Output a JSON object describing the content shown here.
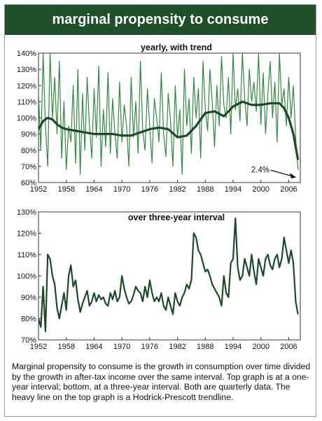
{
  "header": {
    "title": "marginal propensity to consume"
  },
  "caption": "Marginal propensity to consume is the growth in consumption over time divided by the growth in after-tax income over the same interval. Top graph is at a one-year interval; bottom, at a three-year interval. Both are quarterly data. The heavy line on the top graph is a Hodrick-Prescott trendline.",
  "colors": {
    "header_bg": "#1f4f2b",
    "series_light": "#2f8a3f",
    "series_dark": "#1c4a28",
    "frame": "#9a9a9a"
  },
  "chart_data": [
    {
      "type": "line",
      "title": "yearly, with trend",
      "xlim": [
        1952,
        2008.5
      ],
      "ylim": [
        60,
        140
      ],
      "xticks": [
        1952,
        1958,
        1964,
        1970,
        1976,
        1982,
        1988,
        1994,
        2000,
        2006
      ],
      "yticks": [
        60,
        70,
        80,
        90,
        100,
        110,
        120,
        130,
        140
      ],
      "ytick_labels": [
        "60%",
        "70%",
        "80%",
        "90%",
        "100%",
        "110%",
        "120%",
        "130%",
        "140%"
      ],
      "grid": false,
      "annotations": [
        {
          "text": "2.4%",
          "x": 2007.9,
          "y": 62,
          "arrow": true
        }
      ],
      "series": [
        {
          "style": "thin",
          "x": [
            1952.0,
            1952.5,
            1953.0,
            1953.5,
            1954.0,
            1954.5,
            1955.0,
            1955.5,
            1956.0,
            1956.5,
            1957.0,
            1957.5,
            1958.0,
            1958.5,
            1959.0,
            1959.5,
            1960.0,
            1960.5,
            1961.0,
            1961.5,
            1962.0,
            1962.5,
            1963.0,
            1963.5,
            1964.0,
            1964.5,
            1965.0,
            1965.5,
            1966.0,
            1966.5,
            1967.0,
            1967.5,
            1968.0,
            1968.5,
            1969.0,
            1969.5,
            1970.0,
            1970.5,
            1971.0,
            1971.5,
            1972.0,
            1972.5,
            1973.0,
            1973.5,
            1974.0,
            1974.5,
            1975.0,
            1975.5,
            1976.0,
            1976.5,
            1977.0,
            1977.5,
            1978.0,
            1978.5,
            1979.0,
            1979.5,
            1980.0,
            1980.5,
            1981.0,
            1981.5,
            1982.0,
            1982.5,
            1983.0,
            1983.5,
            1984.0,
            1984.5,
            1985.0,
            1985.5,
            1986.0,
            1986.5,
            1987.0,
            1987.5,
            1988.0,
            1988.5,
            1989.0,
            1989.5,
            1990.0,
            1990.5,
            1991.0,
            1991.5,
            1992.0,
            1992.5,
            1993.0,
            1993.5,
            1994.0,
            1994.5,
            1995.0,
            1995.5,
            1996.0,
            1996.5,
            1997.0,
            1997.5,
            1998.0,
            1998.5,
            1999.0,
            1999.5,
            2000.0,
            2000.5,
            2001.0,
            2001.5,
            2002.0,
            2002.5,
            2003.0,
            2003.5,
            2004.0,
            2004.5,
            2005.0,
            2005.5,
            2006.0,
            2006.5,
            2007.0,
            2007.5,
            2008.0
          ],
          "values": [
            115,
            80,
            140,
            95,
            70,
            140,
            100,
            125,
            90,
            135,
            75,
            110,
            68,
            95,
            85,
            120,
            72,
            130,
            65,
            115,
            80,
            125,
            95,
            75,
            118,
            88,
            132,
            70,
            105,
            82,
            128,
            78,
            112,
            90,
            75,
            122,
            85,
            108,
            95,
            70,
            125,
            88,
            110,
            78,
            135,
            92,
            80,
            118,
            95,
            72,
            112,
            100,
            85,
            128,
            90,
            76,
            115,
            98,
            70,
            120,
            88,
            105,
            65,
            130,
            95,
            112,
            78,
            125,
            100,
            118,
            75,
            135,
            105,
            92,
            130,
            110,
            82,
            120,
            95,
            138,
            108,
            100,
            125,
            90,
            140,
            105,
            118,
            98,
            140,
            112,
            95,
            130,
            110,
            122,
            104,
            140,
            96,
            128,
            90,
            115,
            135,
            100,
            122,
            85,
            140,
            108,
            118,
            95,
            125,
            100,
            120,
            88,
            68
          ]
        },
        {
          "style": "heavy",
          "x": [
            1952,
            1953,
            1954,
            1955,
            1956,
            1957,
            1958,
            1960,
            1962,
            1964,
            1966,
            1968,
            1970,
            1972,
            1974,
            1976,
            1978,
            1980,
            1982,
            1984,
            1986,
            1988,
            1990,
            1992,
            1994,
            1996,
            1998,
            2000,
            2002,
            2004,
            2005,
            2006,
            2007,
            2008
          ],
          "values": [
            93,
            98,
            100,
            99,
            96,
            94,
            93,
            92,
            91,
            90,
            90,
            90,
            89,
            89,
            91,
            93,
            94,
            93,
            88,
            89,
            95,
            103,
            104,
            101,
            107,
            110,
            108,
            108,
            109,
            109,
            106,
            100,
            90,
            74
          ]
        }
      ]
    },
    {
      "type": "line",
      "title": "over three-year interval",
      "xlim": [
        1952,
        2008.5
      ],
      "ylim": [
        70,
        130
      ],
      "xticks": [
        1952,
        1958,
        1964,
        1970,
        1976,
        1982,
        1988,
        1994,
        2000,
        2006
      ],
      "yticks": [
        70,
        80,
        90,
        100,
        110,
        120,
        130
      ],
      "ytick_labels": [
        "70%",
        "80%",
        "90%",
        "100%",
        "110%",
        "120%",
        "130%"
      ],
      "grid": false,
      "series": [
        {
          "x": [
            1952.0,
            1952.5,
            1953.0,
            1953.5,
            1954.0,
            1954.5,
            1955.0,
            1955.5,
            1956.0,
            1956.5,
            1957.0,
            1957.5,
            1958.0,
            1958.5,
            1959.0,
            1959.5,
            1960.0,
            1960.5,
            1961.0,
            1961.5,
            1962.0,
            1962.5,
            1963.0,
            1963.5,
            1964.0,
            1964.5,
            1965.0,
            1965.5,
            1966.0,
            1966.5,
            1967.0,
            1967.5,
            1968.0,
            1968.5,
            1969.0,
            1969.5,
            1970.0,
            1970.5,
            1971.0,
            1971.5,
            1972.0,
            1972.5,
            1973.0,
            1973.5,
            1974.0,
            1974.5,
            1975.0,
            1975.5,
            1976.0,
            1976.5,
            1977.0,
            1977.5,
            1978.0,
            1978.5,
            1979.0,
            1979.5,
            1980.0,
            1980.5,
            1981.0,
            1981.5,
            1982.0,
            1982.5,
            1983.0,
            1983.5,
            1984.0,
            1984.5,
            1985.0,
            1985.5,
            1986.0,
            1986.5,
            1987.0,
            1987.5,
            1988.0,
            1988.5,
            1989.0,
            1989.5,
            1990.0,
            1990.5,
            1991.0,
            1991.5,
            1992.0,
            1992.5,
            1993.0,
            1993.5,
            1994.0,
            1994.5,
            1995.0,
            1995.5,
            1996.0,
            1996.5,
            1997.0,
            1997.5,
            1998.0,
            1998.5,
            1999.0,
            1999.5,
            2000.0,
            2000.5,
            2001.0,
            2001.5,
            2002.0,
            2002.5,
            2003.0,
            2003.5,
            2004.0,
            2004.5,
            2005.0,
            2005.5,
            2006.0,
            2006.5,
            2007.0,
            2007.5,
            2008.0
          ],
          "values": [
            80,
            76,
            95,
            74,
            110,
            108,
            100,
            96,
            85,
            80,
            86,
            92,
            84,
            100,
            105,
            95,
            98,
            89,
            83,
            87,
            90,
            93,
            86,
            88,
            92,
            88,
            91,
            89,
            90,
            87,
            86,
            92,
            89,
            93,
            88,
            90,
            100,
            94,
            90,
            87,
            88,
            91,
            95,
            93,
            92,
            88,
            95,
            90,
            98,
            92,
            88,
            90,
            88,
            92,
            86,
            84,
            90,
            86,
            82,
            92,
            88,
            86,
            90,
            92,
            96,
            94,
            98,
            120,
            118,
            112,
            110,
            106,
            102,
            103,
            100,
            96,
            94,
            92,
            90,
            86,
            100,
            92,
            90,
            106,
            108,
            127,
            104,
            98,
            100,
            108,
            104,
            100,
            110,
            102,
            96,
            108,
            104,
            100,
            108,
            110,
            105,
            103,
            108,
            110,
            104,
            108,
            118,
            112,
            106,
            112,
            106,
            88,
            82
          ]
        }
      ]
    }
  ]
}
